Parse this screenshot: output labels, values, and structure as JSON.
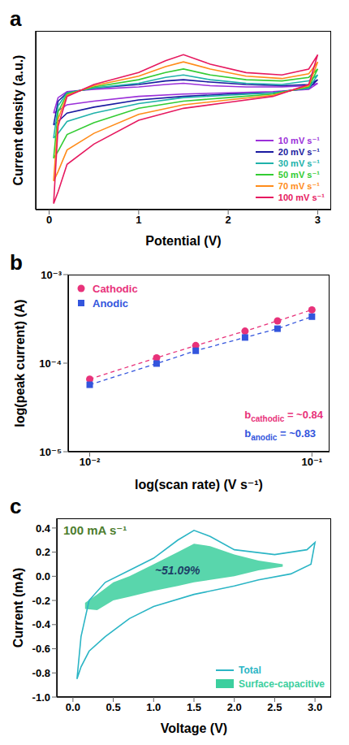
{
  "chart_data": [
    {
      "panel_label": "a",
      "type": "line",
      "x_label": "Potential (V)",
      "y_label": "Current density (a.u.)",
      "x": [
        0.05,
        0.1,
        0.2,
        0.5,
        1.0,
        1.3,
        1.5,
        1.8,
        2.2,
        2.6,
        2.9,
        3.0,
        2.9,
        2.5,
        2.0,
        1.5,
        1.0,
        0.5,
        0.2,
        0.1,
        0.05
      ],
      "xlim": [
        -0.15,
        3.15
      ],
      "xticks": [
        0,
        1,
        2,
        3
      ],
      "ylim": [
        -1,
        0.5
      ],
      "tick_labels": "x",
      "legend": "lower right",
      "series": [
        {
          "name": "10 mV s⁻¹",
          "color": "#9b30d9",
          "values": [
            -0.19,
            -0.06,
            -0.01,
            0.01,
            0.03,
            0.05,
            0.06,
            0.04,
            0.03,
            0.03,
            0.04,
            0.06,
            0.01,
            -0.01,
            -0.02,
            -0.03,
            -0.05,
            -0.09,
            -0.12,
            -0.17,
            -0.19
          ]
        },
        {
          "name": "20 mV s⁻¹",
          "color": "#1a1aa0",
          "values": [
            -0.29,
            -0.09,
            -0.02,
            0.02,
            0.05,
            0.08,
            0.09,
            0.07,
            0.05,
            0.04,
            0.05,
            0.09,
            0.02,
            -0.02,
            -0.03,
            -0.05,
            -0.08,
            -0.14,
            -0.19,
            -0.26,
            -0.29
          ]
        },
        {
          "name": "30 mV s⁻¹",
          "color": "#20b2aa",
          "values": [
            -0.4,
            -0.13,
            -0.02,
            0.02,
            0.06,
            0.11,
            0.13,
            0.09,
            0.06,
            0.05,
            0.08,
            0.13,
            0.02,
            -0.02,
            -0.04,
            -0.06,
            -0.11,
            -0.19,
            -0.26,
            -0.36,
            -0.4
          ]
        },
        {
          "name": "50 mV s⁻¹",
          "color": "#33cc33",
          "values": [
            -0.57,
            -0.18,
            -0.03,
            0.03,
            0.09,
            0.15,
            0.18,
            0.13,
            0.09,
            0.08,
            0.11,
            0.18,
            0.03,
            -0.03,
            -0.06,
            -0.09,
            -0.15,
            -0.27,
            -0.37,
            -0.51,
            -0.57
          ]
        },
        {
          "name": "70 mV s⁻¹",
          "color": "#ff8c1a",
          "values": [
            -0.76,
            -0.24,
            -0.04,
            0.04,
            0.12,
            0.2,
            0.24,
            0.18,
            0.12,
            0.1,
            0.14,
            0.24,
            0.04,
            -0.04,
            -0.08,
            -0.12,
            -0.2,
            -0.36,
            -0.5,
            -0.68,
            -0.76
          ]
        },
        {
          "name": "100 mV s⁻¹",
          "color": "#e6195f",
          "values": [
            -0.95,
            -0.3,
            -0.05,
            0.05,
            0.15,
            0.25,
            0.3,
            0.22,
            0.15,
            0.13,
            0.18,
            0.3,
            0.05,
            -0.05,
            -0.1,
            -0.15,
            -0.25,
            -0.45,
            -0.62,
            -0.85,
            -0.95
          ]
        }
      ]
    },
    {
      "panel_label": "b",
      "type": "scatter",
      "log": true,
      "x_label": "log(scan rate) (V s⁻¹)",
      "y_label": "log(peak current) (A)",
      "x": [
        0.01,
        0.02,
        0.03,
        0.05,
        0.07,
        0.1
      ],
      "xlim": [
        0.008,
        0.12
      ],
      "xticks": [
        {
          "value": 0.01,
          "label": "10⁻²"
        },
        {
          "value": 0.1,
          "label": "10⁻¹"
        }
      ],
      "ylim": [
        1e-05,
        0.001
      ],
      "yticks": [
        {
          "value": 1e-05,
          "label": "10⁻⁵"
        },
        {
          "value": 0.0001,
          "label": "10⁻⁴"
        },
        {
          "value": 0.001,
          "label": "10⁻³"
        }
      ],
      "legend": "upper left",
      "series": [
        {
          "name": "Cathodic",
          "color": "#e8327a",
          "marker": "circle",
          "line_style": "dashed",
          "values": [
            6.6e-05,
            0.000115,
            0.000158,
            0.00023,
            0.0003,
            0.0004
          ]
        },
        {
          "name": "Anodic",
          "color": "#3355dd",
          "marker": "square",
          "line_style": "dashed",
          "values": [
            5.7e-05,
            9.9e-05,
            0.000138,
            0.000195,
            0.000245,
            0.000335
          ]
        }
      ],
      "annotations": [
        {
          "text": "b",
          "subscript": "cathodic",
          "suffix": " = ~0.84",
          "color": "#e8327a"
        },
        {
          "text": "b",
          "subscript": "anodic",
          "suffix": " = ~0.83",
          "color": "#3355dd"
        }
      ]
    },
    {
      "panel_label": "c",
      "type": "line",
      "title": "100 mA s⁻¹",
      "x_label": "Voltage (V)",
      "y_label": "Current (mA)",
      "xlim": [
        -0.2,
        3.2
      ],
      "xticks": [
        {
          "value": 0,
          "label": "0.0"
        },
        0.5,
        {
          "value": 1,
          "label": "1.0"
        },
        1.5,
        {
          "value": 2,
          "label": "2.0"
        },
        2.5,
        {
          "value": 3,
          "label": "3.0"
        }
      ],
      "ylim": [
        -1.0,
        0.48
      ],
      "yticks": [
        {
          "value": -1,
          "label": "-1.0"
        },
        -0.8,
        -0.6,
        -0.4,
        -0.2,
        {
          "value": 0,
          "label": "0.0"
        },
        0.2,
        0.4
      ],
      "legend": "lower right",
      "annotation": "~51.09%",
      "series": [
        {
          "name": "Total",
          "type": "line",
          "color": "#2bb5c5",
          "x": [
            0.05,
            0.1,
            0.2,
            0.4,
            0.7,
            1.0,
            1.3,
            1.5,
            1.7,
            2.0,
            2.5,
            2.9,
            3.0,
            2.95,
            2.7,
            2.3,
            2.0,
            1.5,
            1.0,
            0.7,
            0.4,
            0.2,
            0.1,
            0.05
          ],
          "values": [
            -0.85,
            -0.5,
            -0.2,
            -0.05,
            0.05,
            0.15,
            0.3,
            0.38,
            0.33,
            0.22,
            0.18,
            0.22,
            0.28,
            0.1,
            0.02,
            -0.03,
            -0.08,
            -0.15,
            -0.25,
            -0.35,
            -0.5,
            -0.62,
            -0.75,
            -0.85
          ]
        },
        {
          "name": "Surface-capacitive",
          "type": "area",
          "color": "#3ccf9e",
          "x": [
            0.15,
            0.3,
            0.5,
            0.7,
            1.0,
            1.3,
            1.5,
            1.7,
            2.0,
            2.3,
            2.6
          ],
          "lower": [
            -0.27,
            -0.28,
            -0.2,
            -0.17,
            -0.12,
            -0.08,
            -0.05,
            -0.03,
            0.0,
            0.05,
            0.08
          ],
          "upper": [
            -0.22,
            -0.15,
            -0.05,
            0.0,
            0.1,
            0.2,
            0.27,
            0.25,
            0.18,
            0.13,
            0.1
          ]
        }
      ]
    }
  ]
}
